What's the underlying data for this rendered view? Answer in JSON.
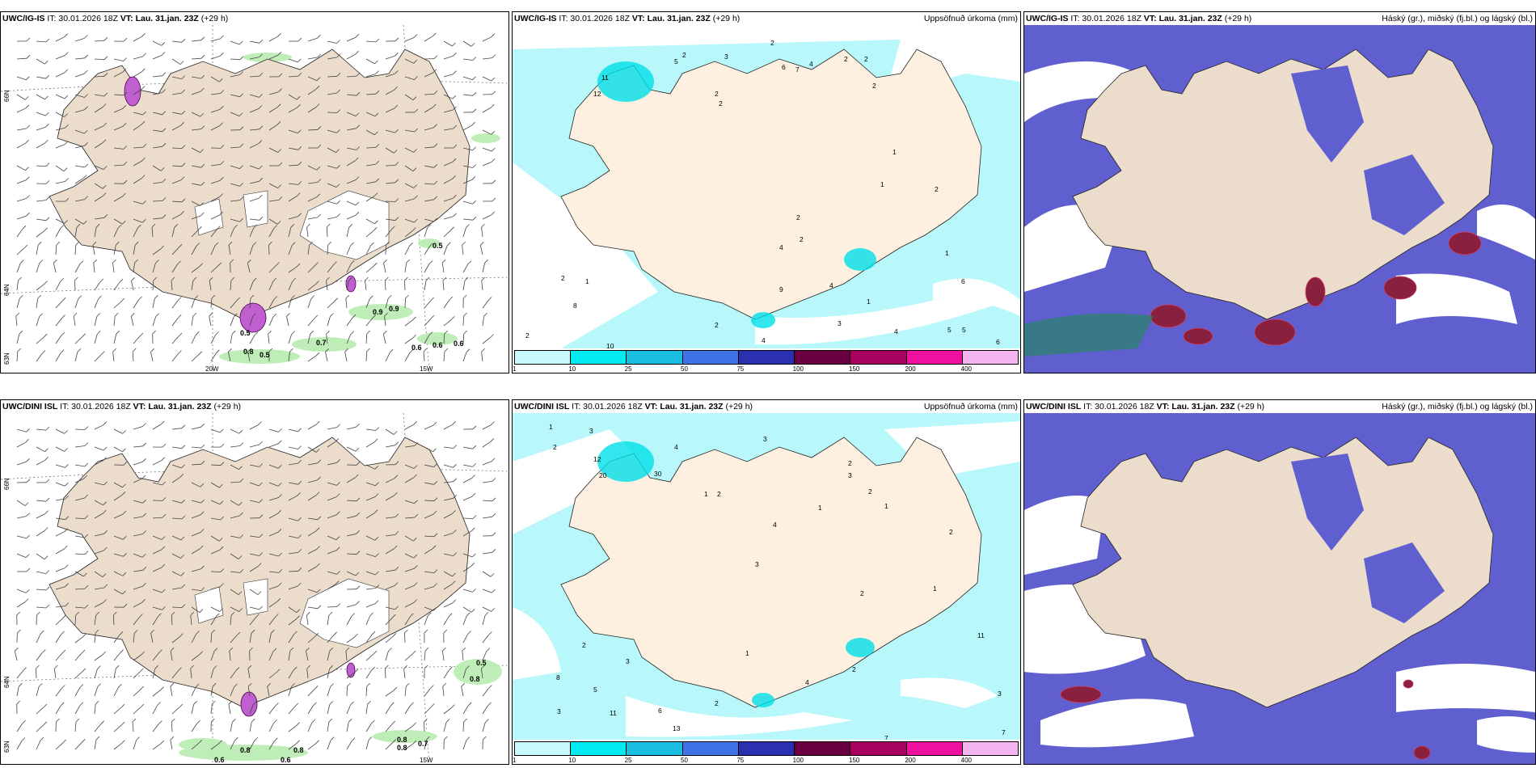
{
  "rows": [
    {
      "model": "UWC/IG-IS",
      "it_label": "IT: 30.01.2026 18Z",
      "vt_label": "VT: Lau. 31.jan. 23Z",
      "lead": "(+29 h)",
      "precip_title": "Uppsöfnuð úrkoma (mm)",
      "cloud_title": "Háský (gr.), miðský (fj.bl.) og lágský (bl.)",
      "wind_values": [
        "0.5",
        "0.9",
        "0.9",
        "0.7",
        "0.8",
        "0.5",
        "0.6",
        "0.6",
        "0.6",
        "0.5"
      ],
      "precip_values": [
        "2",
        "3",
        "5",
        "2",
        "6",
        "7",
        "4",
        "2",
        "2",
        "2",
        "12",
        "11",
        "2",
        "2",
        "1",
        "1",
        "4",
        "2",
        "2",
        "9",
        "4",
        "4",
        "2",
        "1",
        "2",
        "1",
        "2",
        "1",
        "8",
        "6",
        "5",
        "5",
        "4",
        "2",
        "3",
        "10",
        "6"
      ]
    },
    {
      "model": "UWC/DINI ISL",
      "it_label": "IT: 30.01.2026 18Z",
      "vt_label": "VT: Lau. 31.jan. 23Z",
      "lead": "(+29 h)",
      "precip_title": "Uppsöfnuð úrkoma (mm)",
      "cloud_title": "Háský (gr.), miðský (fj.bl.) og lágský (bl.)",
      "wind_values": [
        "0.5",
        "0.8",
        "0.8",
        "0.8",
        "0.7",
        "0.6",
        "0.6",
        "0.8",
        "0.8"
      ],
      "precip_values": [
        "1",
        "2",
        "3",
        "4",
        "3",
        "12",
        "20",
        "30",
        "2",
        "1",
        "1",
        "2",
        "3",
        "4",
        "2",
        "1",
        "3",
        "1",
        "8",
        "11",
        "6",
        "13",
        "7",
        "3",
        "2",
        "5",
        "2",
        "11",
        "3",
        "2",
        "2",
        "4",
        "2",
        "1",
        "3",
        "7"
      ]
    }
  ],
  "axis": {
    "lat_66": "66N",
    "lat_64": "64N",
    "lat_63": "63N",
    "lon_20": "20W",
    "lon_15": "15W"
  },
  "colorbar": {
    "ticks": [
      "1",
      "10",
      "25",
      "50",
      "75",
      "100",
      "150",
      "200",
      "400"
    ],
    "colors": [
      "#c8f9fb",
      "#00eaf0",
      "#19bde0",
      "#3f72e8",
      "#2a30b0",
      "#6a0040",
      "#a8005e",
      "#f010a0",
      "#f4b4f0"
    ]
  },
  "colors": {
    "land_tan": "#ecdccb",
    "land_cream": "#fdf0e0",
    "precip_light": "#b8f8fb",
    "cloud_blue": "#5f5fd0",
    "cloud_red": "#8a2040",
    "wind_green": "#b9ecb0"
  }
}
